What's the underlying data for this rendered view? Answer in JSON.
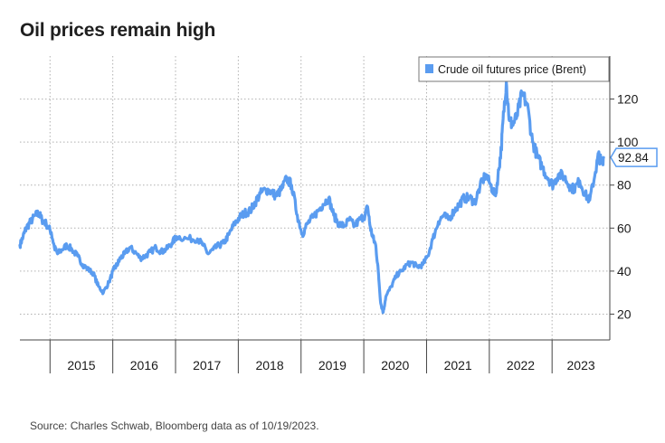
{
  "title": "Oil prices remain high",
  "source": "Source: Charles Schwab, Bloomberg data as of 10/19/2023.",
  "colors": {
    "series": "#5a9cf0",
    "grid": "#b0b0b0",
    "axis": "#444444"
  },
  "chart_data": {
    "type": "line",
    "title": "Oil prices remain high",
    "xlabel": "",
    "ylabel": "",
    "ylim": [
      8,
      140
    ],
    "xlim": [
      2014.5,
      2023.9
    ],
    "grid": true,
    "legend_position": "top-right",
    "y_axis_side": "right",
    "y_ticks": [
      20,
      40,
      60,
      80,
      100,
      120
    ],
    "x_tick_labels": [
      "2015",
      "2016",
      "2017",
      "2018",
      "2019",
      "2020",
      "2021",
      "2022",
      "2023"
    ],
    "last_value_label": "92.84",
    "series": [
      {
        "name": "Crude oil futures price (Brent)",
        "x": [
          2014.5,
          2014.55,
          2014.6,
          2014.67,
          2014.75,
          2014.8,
          2014.85,
          2014.92,
          2015.0,
          2015.05,
          2015.1,
          2015.17,
          2015.25,
          2015.33,
          2015.42,
          2015.5,
          2015.58,
          2015.67,
          2015.75,
          2015.83,
          2015.92,
          2016.0,
          2016.05,
          2016.1,
          2016.17,
          2016.25,
          2016.33,
          2016.42,
          2016.5,
          2016.58,
          2016.67,
          2016.75,
          2016.83,
          2016.92,
          2017.0,
          2017.17,
          2017.33,
          2017.42,
          2017.5,
          2017.58,
          2017.67,
          2017.75,
          2017.83,
          2017.92,
          2018.0,
          2018.08,
          2018.17,
          2018.25,
          2018.33,
          2018.42,
          2018.5,
          2018.58,
          2018.67,
          2018.75,
          2018.83,
          2018.92,
          2019.0,
          2019.08,
          2019.17,
          2019.25,
          2019.33,
          2019.42,
          2019.5,
          2019.58,
          2019.67,
          2019.75,
          2019.83,
          2019.92,
          2020.0,
          2020.04,
          2020.08,
          2020.12,
          2020.17,
          2020.21,
          2020.25,
          2020.29,
          2020.33,
          2020.42,
          2020.5,
          2020.58,
          2020.67,
          2020.75,
          2020.83,
          2020.92,
          2021.0,
          2021.08,
          2021.17,
          2021.25,
          2021.33,
          2021.42,
          2021.5,
          2021.58,
          2021.67,
          2021.75,
          2021.83,
          2021.92,
          2022.0,
          2022.08,
          2022.13,
          2022.17,
          2022.21,
          2022.25,
          2022.3,
          2022.35,
          2022.42,
          2022.5,
          2022.58,
          2022.67,
          2022.75,
          2022.83,
          2022.92,
          2023.0,
          2023.08,
          2023.17,
          2023.25,
          2023.33,
          2023.42,
          2023.5,
          2023.58,
          2023.67,
          2023.72,
          2023.77,
          2023.8
        ],
        "values": [
          52,
          56,
          60,
          63,
          66,
          67,
          64,
          62,
          58,
          51,
          48,
          50,
          52,
          50,
          47,
          43,
          41,
          39,
          33,
          30,
          35,
          41,
          43,
          46,
          48,
          51,
          49,
          46,
          47,
          49,
          51,
          49,
          50,
          53,
          56,
          55,
          55,
          52,
          48,
          50,
          52,
          53,
          57,
          62,
          65,
          67,
          68,
          72,
          76,
          78,
          77,
          75,
          78,
          83,
          80,
          66,
          57,
          62,
          65,
          68,
          71,
          74,
          66,
          62,
          61,
          64,
          61,
          64,
          66,
          70,
          61,
          56,
          52,
          40,
          25,
          21,
          28,
          33,
          38,
          40,
          43,
          44,
          42,
          43,
          47,
          55,
          63,
          66,
          64,
          68,
          71,
          74,
          74,
          72,
          79,
          85,
          80,
          75,
          87,
          97,
          114,
          128,
          110,
          108,
          112,
          122,
          118,
          100,
          93,
          88,
          83,
          80,
          85,
          84,
          80,
          78,
          82,
          76,
          73,
          86,
          94,
          90,
          92.84
        ]
      }
    ]
  }
}
